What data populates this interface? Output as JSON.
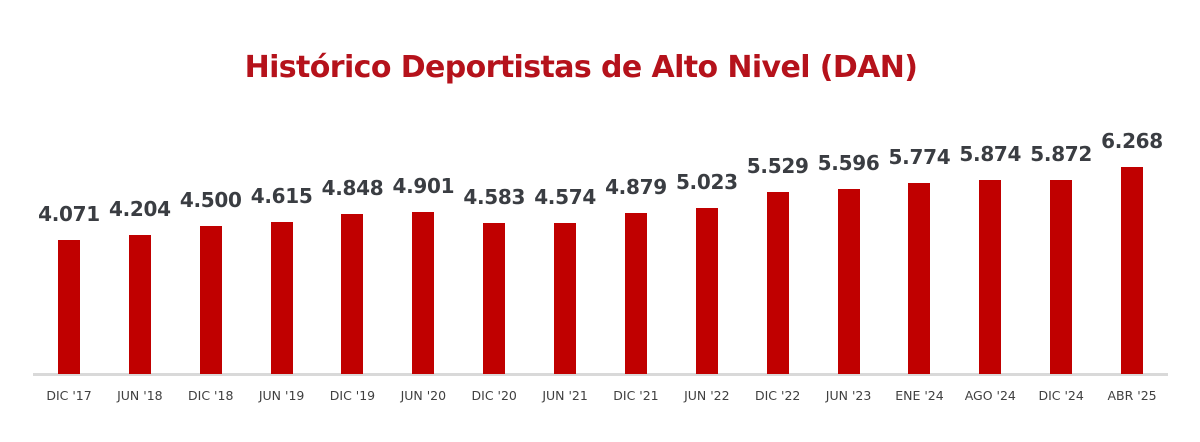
{
  "chart_data": {
    "type": "bar",
    "title": "Histórico Deportistas de Alto Nivel (DAN)",
    "xlabel": "",
    "ylabel": "",
    "categories": [
      "DIC '17",
      "JUN '18",
      "DIC '18",
      "JUN '19",
      "DIC '19",
      "JUN '20",
      "DIC '20",
      "JUN '21",
      "DIC '21",
      "JUN '22",
      "DIC '22",
      "JUN '23",
      "ENE '24",
      "AGO '24",
      "DIC '24",
      "ABR '25"
    ],
    "values": [
      4071,
      4204,
      4500,
      4615,
      4848,
      4901,
      4583,
      4574,
      4879,
      5023,
      5529,
      5596,
      5774,
      5874,
      5872,
      6268
    ],
    "value_labels": [
      "4.071",
      "4.204",
      "4.500",
      "4.615",
      "4.848",
      "4.901",
      "4.583",
      "4.574",
      "4.879",
      "5.023",
      "5.529",
      "5.596",
      "5.774",
      "5.874",
      "5.872",
      "6.268"
    ],
    "ylim": [
      0,
      7000
    ],
    "grid": false,
    "legend": null,
    "bar_color": "#c00000",
    "title_color": "#b5121b"
  }
}
